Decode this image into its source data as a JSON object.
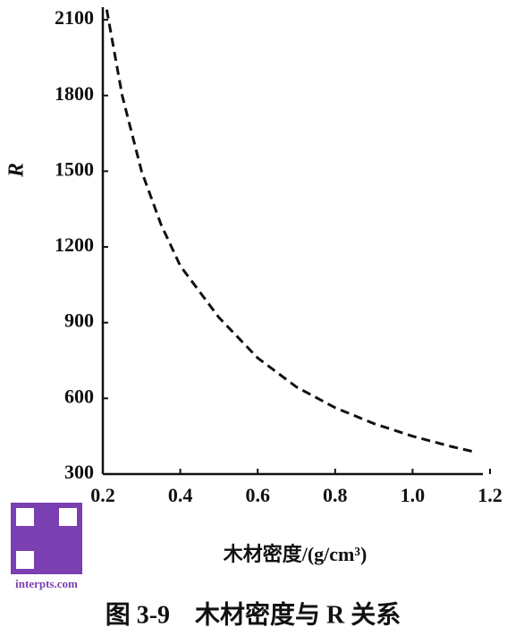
{
  "chart_data": {
    "type": "line",
    "x_label": "木材密度/(g/cm³)",
    "y_label": "R",
    "caption": "图 3-9　木材密度与 R 关系",
    "watermark": "interpts.com",
    "x": [
      0.21,
      0.25,
      0.3,
      0.35,
      0.4,
      0.5,
      0.6,
      0.7,
      0.8,
      0.9,
      1.0,
      1.1,
      1.16
    ],
    "series": [
      {
        "color": "#111111",
        "dashed": true,
        "values": [
          2140,
          1800,
          1500,
          1290,
          1125,
          920,
          760,
          645,
          563,
          500,
          450,
          409,
          388
        ]
      }
    ],
    "xlim": [
      0.2,
      1.2
    ],
    "ylim": [
      300,
      2150
    ],
    "xticks": [
      0.2,
      0.4,
      0.6,
      0.8,
      {
        "value": 1,
        "label": "1.0"
      },
      1.2
    ],
    "yticks": [
      300,
      600,
      900,
      1200,
      1500,
      1800,
      2100
    ]
  }
}
